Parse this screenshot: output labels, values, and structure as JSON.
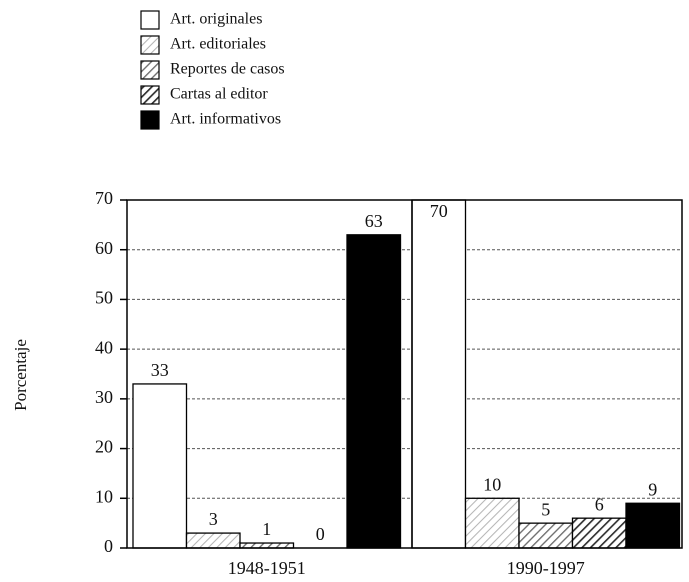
{
  "chart_data": {
    "type": "bar",
    "y_label": "Porcentaje",
    "categories": [
      "1948-1951",
      "1990-1997"
    ],
    "series": [
      {
        "name": "Art. originales",
        "color": "#ffffff",
        "values": [
          33,
          70
        ]
      },
      {
        "name": "Art. editoriales",
        "color": "#b5b5b5",
        "values": [
          3,
          10
        ]
      },
      {
        "name": "Reportes de casos",
        "color": "#6e6e6e",
        "values": [
          1,
          5
        ]
      },
      {
        "name": "Cartas al editor",
        "color": "#2e2e2e",
        "values": [
          0,
          6
        ]
      },
      {
        "name": "Art. informativos",
        "color": "#000000",
        "values": [
          63,
          9
        ]
      }
    ],
    "ylim": [
      0,
      70
    ],
    "yticks": [
      0,
      10,
      20,
      30,
      40,
      50,
      60,
      70
    ],
    "grid": true,
    "legend": "top-left"
  }
}
